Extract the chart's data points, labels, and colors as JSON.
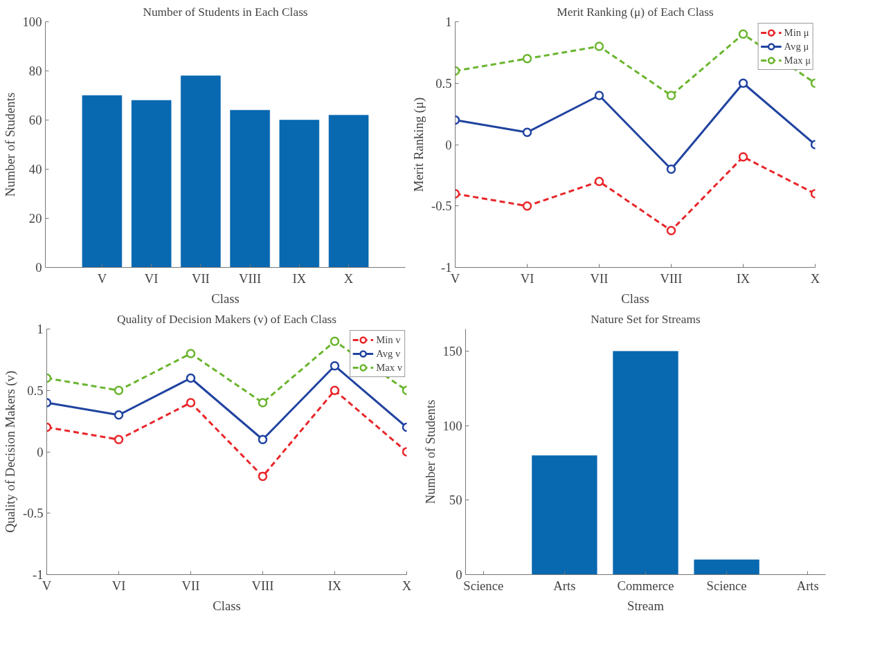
{
  "chart_data": [
    {
      "type": "bar",
      "title": "Number of Students in Each Class",
      "xlabel": "Class",
      "ylabel": "Number of Students",
      "categories": [
        "V",
        "VI",
        "VII",
        "VIII",
        "IX",
        "X"
      ],
      "values": [
        70,
        68,
        78,
        64,
        60,
        62
      ],
      "color": "#0868b0",
      "ylim": [
        0,
        100
      ],
      "yticks": [
        0,
        20,
        40,
        60,
        80,
        100
      ]
    },
    {
      "type": "line",
      "title": "Merit Ranking (μ) of Each Class",
      "xlabel": "Class",
      "ylabel": "Merit Ranking (μ)",
      "categories": [
        "V",
        "VI",
        "VII",
        "VIII",
        "IX",
        "X"
      ],
      "ylim": [
        -1,
        1
      ],
      "yticks": [
        -1,
        -0.5,
        0,
        0.5,
        1
      ],
      "legend": "top right",
      "marker": "circle",
      "series": [
        {
          "name": "Min μ",
          "color": "#e8262a",
          "line_style": "dashed",
          "values": [
            -0.4,
            -0.5,
            -0.3,
            -0.7,
            -0.1,
            -0.4
          ]
        },
        {
          "name": "Avg μ",
          "color": "#2043a0",
          "line_style": "solid",
          "values": [
            0.2,
            0.1,
            0.4,
            -0.2,
            0.5,
            0
          ]
        },
        {
          "name": "Max μ",
          "color": "#6ab52e",
          "line_style": "dashed",
          "values": [
            0.6,
            0.7,
            0.8,
            0.4,
            0.9,
            0.5
          ]
        }
      ]
    },
    {
      "type": "line",
      "title": "Quality of Decision Makers (v) of Each Class",
      "xlabel": "Class",
      "ylabel": "Quality of Decision Makers (v)",
      "categories": [
        "V",
        "VI",
        "VII",
        "VIII",
        "IX",
        "X"
      ],
      "ylim": [
        -1,
        1
      ],
      "yticks": [
        -1,
        -0.5,
        0,
        0.5,
        1
      ],
      "legend": "top right",
      "marker": "circle",
      "series": [
        {
          "name": "Min v",
          "color": "#e8262a",
          "line_style": "dashed",
          "values": [
            0.2,
            0.1,
            0.4,
            -0.2,
            0.5,
            0
          ]
        },
        {
          "name": "Avg v",
          "color": "#2043a0",
          "line_style": "solid",
          "values": [
            0.4,
            0.3,
            0.6,
            0.1,
            0.7,
            0.2
          ]
        },
        {
          "name": "Max v",
          "color": "#6ab52e",
          "line_style": "dashed",
          "values": [
            0.6,
            0.5,
            0.8,
            0.4,
            0.9,
            0.5
          ]
        }
      ]
    },
    {
      "type": "bar",
      "title": "Nature Set for Streams",
      "xlabel": "Stream",
      "ylabel": "Number of Students",
      "categories": [
        "Science",
        "Arts",
        "Commerce",
        "Science",
        "Arts"
      ],
      "values": [
        0,
        80,
        150,
        10,
        0
      ],
      "color": "#0868b0",
      "ylim": [
        0,
        165
      ],
      "yticks": [
        0,
        50,
        100,
        150
      ]
    }
  ]
}
